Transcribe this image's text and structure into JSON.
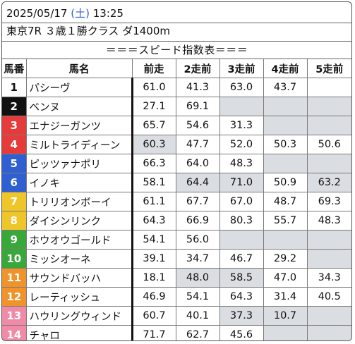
{
  "header": {
    "date": "2025/05/17",
    "weekday": "(土)",
    "time": "13:25",
    "race": "東京7R ３歳１勝クラス ダ1400m"
  },
  "banner": "＝＝＝スピード指数表＝＝＝",
  "columns": [
    "馬番",
    "馬名",
    "前走",
    "2走前",
    "3走前",
    "4走前",
    "5走前"
  ],
  "rows": [
    {
      "num": "1",
      "name": "パシーヴ",
      "v": [
        "61.0",
        "41.3",
        "63.0",
        "43.7",
        ""
      ],
      "gray": [
        false,
        false,
        false,
        false,
        false
      ]
    },
    {
      "num": "2",
      "name": "ベンヌ",
      "v": [
        "27.1",
        "69.1",
        "",
        "",
        ""
      ],
      "gray": [
        false,
        false,
        true,
        true,
        true
      ]
    },
    {
      "num": "3",
      "name": "エナジーガンツ",
      "v": [
        "65.7",
        "54.6",
        "31.3",
        "",
        ""
      ],
      "gray": [
        false,
        false,
        false,
        true,
        true
      ]
    },
    {
      "num": "4",
      "name": "ミルトライディーン",
      "v": [
        "60.3",
        "47.7",
        "52.0",
        "50.3",
        "50.6"
      ],
      "gray": [
        true,
        false,
        false,
        false,
        false
      ]
    },
    {
      "num": "5",
      "name": "ピッツァナポリ",
      "v": [
        "66.3",
        "64.0",
        "48.3",
        "",
        ""
      ],
      "gray": [
        false,
        false,
        false,
        true,
        true
      ]
    },
    {
      "num": "6",
      "name": "イノキ",
      "v": [
        "58.1",
        "64.4",
        "71.0",
        "50.9",
        "63.2"
      ],
      "gray": [
        false,
        true,
        true,
        false,
        true
      ]
    },
    {
      "num": "7",
      "name": "トリリオンボーイ",
      "v": [
        "61.1",
        "67.7",
        "67.0",
        "48.7",
        "69.3"
      ],
      "gray": [
        false,
        false,
        false,
        false,
        false
      ]
    },
    {
      "num": "8",
      "name": "ダイシンリンク",
      "v": [
        "64.3",
        "66.9",
        "80.3",
        "55.7",
        "48.3"
      ],
      "gray": [
        false,
        false,
        false,
        false,
        false
      ]
    },
    {
      "num": "9",
      "name": "ホウオウゴールド",
      "v": [
        "54.1",
        "56.0",
        "",
        "",
        ""
      ],
      "gray": [
        false,
        false,
        true,
        true,
        true
      ]
    },
    {
      "num": "10",
      "name": "ミッシオーネ",
      "v": [
        "39.1",
        "34.7",
        "46.7",
        "29.2",
        ""
      ],
      "gray": [
        false,
        false,
        false,
        false,
        true
      ]
    },
    {
      "num": "11",
      "name": "サウンドバッハ",
      "v": [
        "18.1",
        "48.0",
        "58.5",
        "47.0",
        "34.3"
      ],
      "gray": [
        false,
        true,
        true,
        false,
        false
      ]
    },
    {
      "num": "12",
      "name": "レーティッシュ",
      "v": [
        "46.9",
        "54.1",
        "64.3",
        "31.4",
        "40.5"
      ],
      "gray": [
        false,
        false,
        false,
        false,
        false
      ]
    },
    {
      "num": "13",
      "name": "ハウリングウィンド",
      "v": [
        "60.7",
        "40.1",
        "37.3",
        "10.7",
        ""
      ],
      "gray": [
        false,
        false,
        true,
        true,
        true
      ]
    },
    {
      "num": "14",
      "name": "チャロ",
      "v": [
        "71.7",
        "62.7",
        "45.6",
        "",
        ""
      ],
      "gray": [
        false,
        false,
        false,
        true,
        true
      ]
    }
  ]
}
